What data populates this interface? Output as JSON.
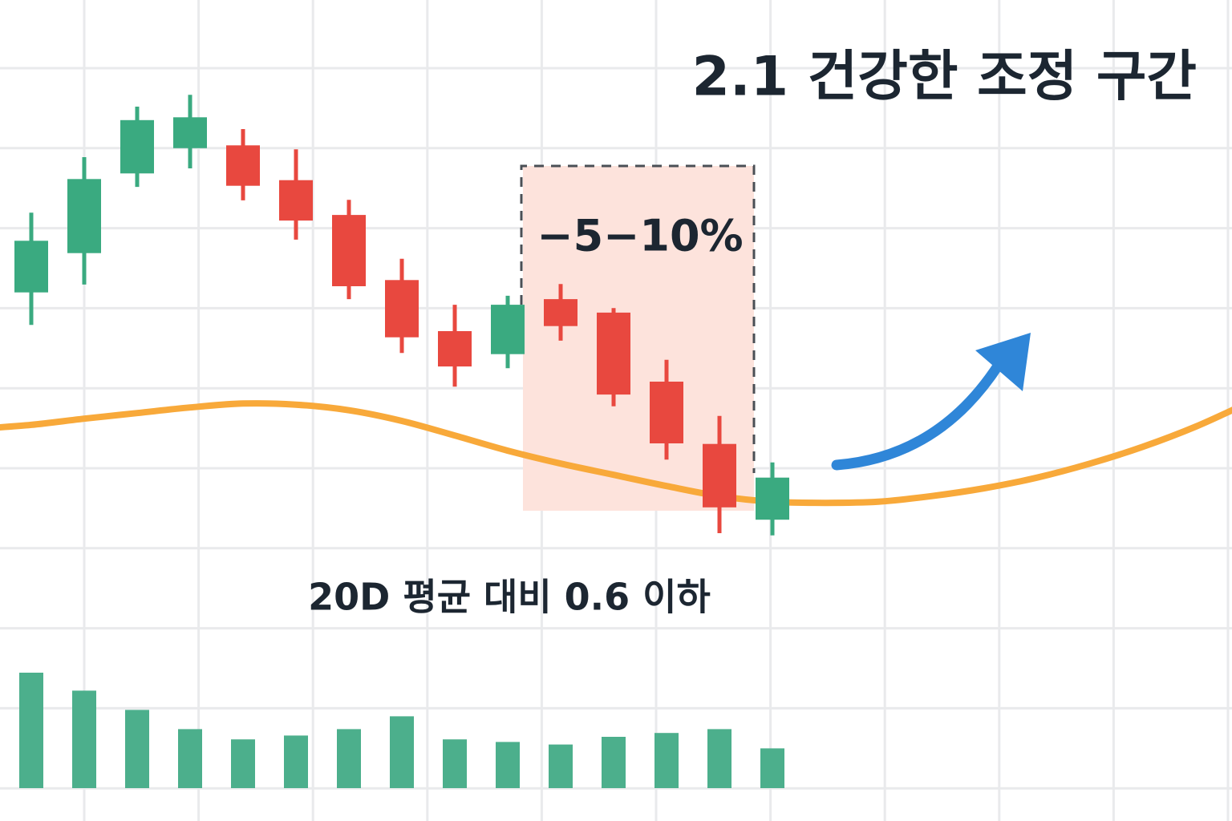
{
  "chart_data": {
    "type": "candlestick",
    "title": "2.1 건강한 조정 구간",
    "annotations": [
      "−5−10%",
      "20D 평균 대비 0.6 이하"
    ],
    "open": [
      47.9,
      54.9,
      69.1,
      73.6,
      74.1,
      67.9,
      61.7,
      50.1,
      41.0,
      36.9,
      46.7,
      44.3,
      32.0,
      20.9,
      7.4
    ],
    "high": [
      62.1,
      72.0,
      81.0,
      83.1,
      77.0,
      73.4,
      64.4,
      53.9,
      45.7,
      47.3,
      49.4,
      45.1,
      35.9,
      25.9,
      17.6
    ],
    "low": [
      42.1,
      49.3,
      66.7,
      70.0,
      64.3,
      57.3,
      46.7,
      37.1,
      31.1,
      34.4,
      39.3,
      27.6,
      18.1,
      5.0,
      4.6
    ],
    "close": [
      57.1,
      68.1,
      78.6,
      79.1,
      66.9,
      60.7,
      49.0,
      39.9,
      34.7,
      45.7,
      41.9,
      29.7,
      21.0,
      9.6,
      14.9
    ],
    "up_color": "#3aaa80",
    "down_color": "#e8483f",
    "ylim": [
      0,
      100
    ],
    "moving_average": {
      "color": "#f8a93a",
      "x": [
        -1,
        0,
        1,
        2,
        3,
        4,
        5,
        6,
        7,
        8,
        9,
        10,
        11,
        12,
        13,
        14,
        15,
        16,
        17,
        18,
        19,
        20,
        21,
        22,
        23
      ],
      "values": [
        23.6,
        24.3,
        25.4,
        26.4,
        27.4,
        28.1,
        27.9,
        26.9,
        25.0,
        22.4,
        19.7,
        17.4,
        15.4,
        13.4,
        11.6,
        10.6,
        10.4,
        10.6,
        11.6,
        13.0,
        14.9,
        17.4,
        20.4,
        24.0,
        28.3
      ]
    },
    "volume": {
      "color": "#4caf8c",
      "ylim": [
        0,
        100
      ],
      "values": [
        90,
        76,
        61,
        46,
        38,
        41,
        46,
        56,
        38,
        36,
        34,
        40,
        43,
        46,
        31
      ]
    }
  }
}
